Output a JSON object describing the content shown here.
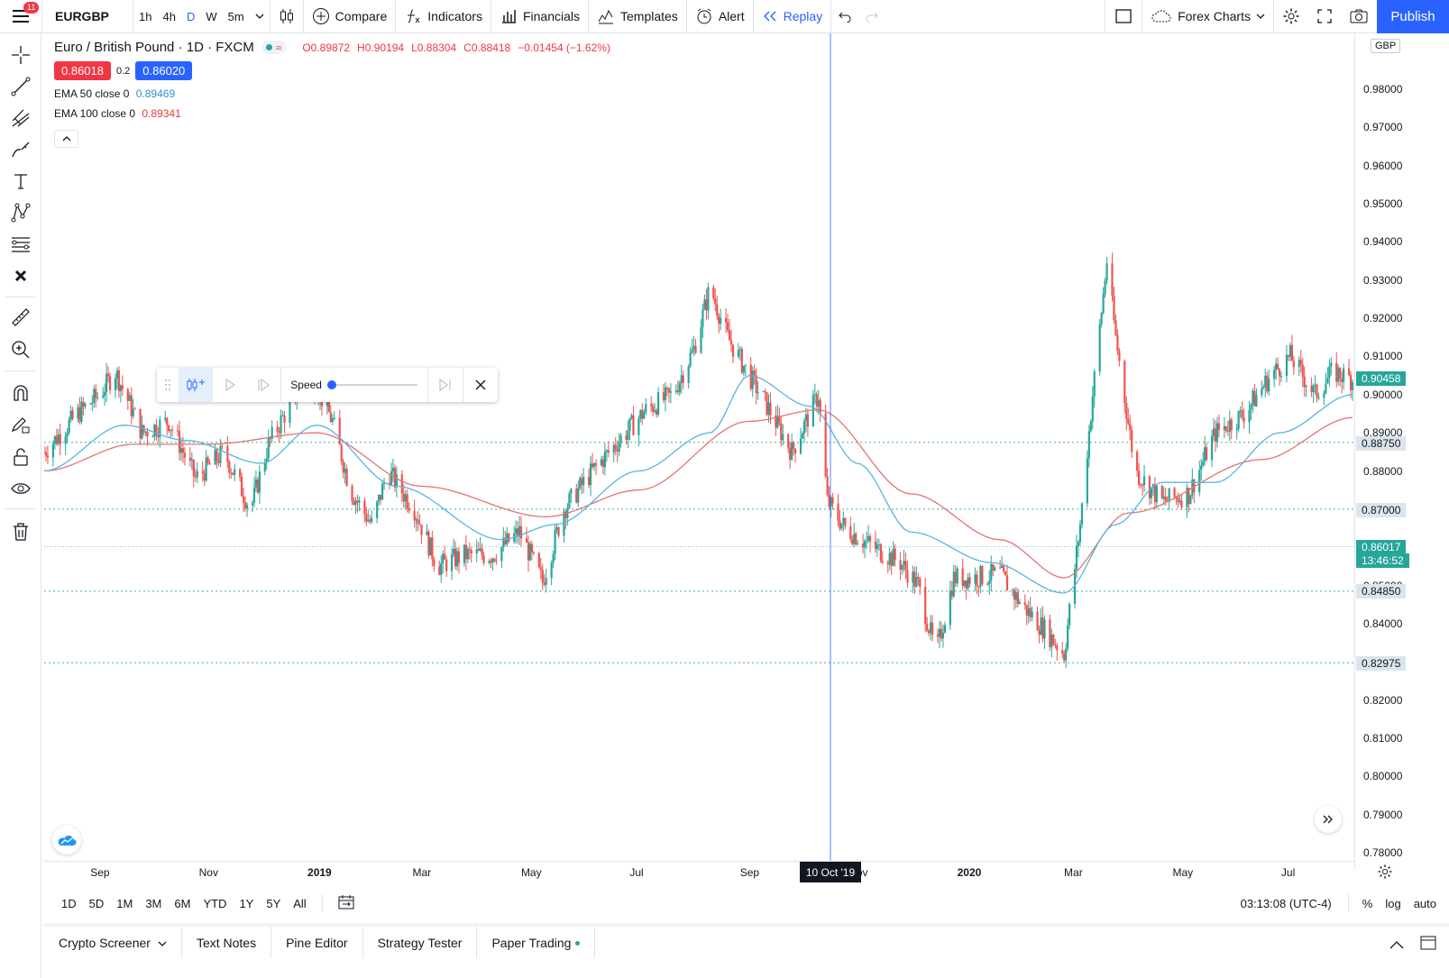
{
  "toolbar": {
    "menu_badge": "11",
    "symbol": "EURGBP",
    "intervals": [
      "1h",
      "4h",
      "D",
      "W",
      "5m"
    ],
    "compare": "Compare",
    "indicators": "Indicators",
    "financials": "Financials",
    "templates": "Templates",
    "alert": "Alert",
    "replay": "Replay",
    "layout_name": "Forex Charts",
    "publish": "Publish"
  },
  "legend": {
    "title": "Euro / British Pound · 1D · FXCM",
    "open": "O0.89872",
    "high": "H0.90194",
    "low": "L0.88304",
    "close": "C0.88418",
    "change": "−0.01454 (−1.62%)",
    "bid": "0.86018",
    "spread": "0.2",
    "ask": "0.86020",
    "ema50_label": "EMA 50 close 0",
    "ema50_value": "0.89469",
    "ema100_label": "EMA 100 close 0",
    "ema100_value": "0.89341"
  },
  "replay_widget": {
    "speed_label": "Speed"
  },
  "price_axis": {
    "currency": "GBP",
    "ticks": [
      "0.98000",
      "0.97000",
      "0.96000",
      "0.95000",
      "0.94000",
      "0.93000",
      "0.92000",
      "0.91000",
      "0.90000",
      "0.89000",
      "0.88000",
      "0.87000",
      "0.86000",
      "0.85000",
      "0.84000",
      "0.83000",
      "0.82000",
      "0.81000",
      "0.80000",
      "0.79000",
      "0.78000"
    ],
    "label_90458": "0.90458",
    "label_88750": "0.88750",
    "label_87000": "0.87000",
    "label_current": "0.86017",
    "label_countdown": "13:46:52",
    "label_84850": "0.84850",
    "label_82975": "0.82975"
  },
  "time_axis": {
    "labels": [
      "Sep",
      "Nov",
      "2019",
      "Mar",
      "May",
      "Jul",
      "Sep",
      "Nov",
      "2020",
      "Mar",
      "May",
      "Jul"
    ],
    "crosshair_label": "10 Oct '19"
  },
  "range_bar": {
    "ranges": [
      "1D",
      "5D",
      "1M",
      "3M",
      "6M",
      "YTD",
      "1Y",
      "5Y",
      "All"
    ],
    "clock": "03:13:08 (UTC-4)",
    "percent": "%",
    "log": "log",
    "auto": "auto"
  },
  "bottom_tabs": [
    "Crypto Screener",
    "Text Notes",
    "Pine Editor",
    "Strategy Tester",
    "Paper Trading"
  ],
  "colors": {
    "up": "#26a69a",
    "down": "#ef5350",
    "ema50": "#5ab4e0",
    "ema100": "#e57373",
    "accent": "#2962ff"
  },
  "chart_data": {
    "type": "candlestick",
    "symbol": "EURGBP",
    "timeframe": "1D",
    "x_range": [
      "2018-08",
      "2020-08"
    ],
    "ylim": [
      0.775,
      0.985
    ],
    "horizontal_levels": [
      0.8875,
      0.87,
      0.86017,
      0.8485,
      0.82975
    ],
    "crosshair_date": "10 Oct '19",
    "close_path": [
      {
        "date": "2018-08-01",
        "price": 0.885
      },
      {
        "date": "2018-08-20",
        "price": 0.895
      },
      {
        "date": "2018-09-01",
        "price": 0.9
      },
      {
        "date": "2018-09-10",
        "price": 0.906
      },
      {
        "date": "2018-09-25",
        "price": 0.89
      },
      {
        "date": "2018-10-10",
        "price": 0.893
      },
      {
        "date": "2018-10-25",
        "price": 0.878
      },
      {
        "date": "2018-11-10",
        "price": 0.885
      },
      {
        "date": "2018-11-25",
        "price": 0.87
      },
      {
        "date": "2018-12-05",
        "price": 0.887
      },
      {
        "date": "2018-12-20",
        "price": 0.9
      },
      {
        "date": "2019-01-01",
        "price": 0.902
      },
      {
        "date": "2019-01-10",
        "price": 0.893
      },
      {
        "date": "2019-01-20",
        "price": 0.875
      },
      {
        "date": "2019-02-01",
        "price": 0.866
      },
      {
        "date": "2019-02-10",
        "price": 0.88
      },
      {
        "date": "2019-02-25",
        "price": 0.87
      },
      {
        "date": "2019-03-10",
        "price": 0.855
      },
      {
        "date": "2019-03-25",
        "price": 0.858
      },
      {
        "date": "2019-04-10",
        "price": 0.858
      },
      {
        "date": "2019-04-25",
        "price": 0.864
      },
      {
        "date": "2019-05-08",
        "price": 0.851
      },
      {
        "date": "2019-05-20",
        "price": 0.87
      },
      {
        "date": "2019-06-05",
        "price": 0.88
      },
      {
        "date": "2019-06-20",
        "price": 0.888
      },
      {
        "date": "2019-07-05",
        "price": 0.896
      },
      {
        "date": "2019-07-20",
        "price": 0.9
      },
      {
        "date": "2019-08-01",
        "price": 0.912
      },
      {
        "date": "2019-08-10",
        "price": 0.928
      },
      {
        "date": "2019-08-20",
        "price": 0.915
      },
      {
        "date": "2019-09-01",
        "price": 0.905
      },
      {
        "date": "2019-09-10",
        "price": 0.898
      },
      {
        "date": "2019-09-25",
        "price": 0.885
      },
      {
        "date": "2019-10-10",
        "price": 0.9
      },
      {
        "date": "2019-10-15",
        "price": 0.872
      },
      {
        "date": "2019-10-25",
        "price": 0.865
      },
      {
        "date": "2019-11-10",
        "price": 0.86
      },
      {
        "date": "2019-11-25",
        "price": 0.856
      },
      {
        "date": "2019-12-05",
        "price": 0.85
      },
      {
        "date": "2019-12-15",
        "price": 0.832
      },
      {
        "date": "2019-12-25",
        "price": 0.852
      },
      {
        "date": "2020-01-05",
        "price": 0.852
      },
      {
        "date": "2020-01-20",
        "price": 0.853
      },
      {
        "date": "2020-02-01",
        "price": 0.845
      },
      {
        "date": "2020-02-15",
        "price": 0.838
      },
      {
        "date": "2020-02-25",
        "price": 0.832
      },
      {
        "date": "2020-03-05",
        "price": 0.866
      },
      {
        "date": "2020-03-12",
        "price": 0.9
      },
      {
        "date": "2020-03-20",
        "price": 0.935
      },
      {
        "date": "2020-03-25",
        "price": 0.915
      },
      {
        "date": "2020-04-05",
        "price": 0.88
      },
      {
        "date": "2020-04-20",
        "price": 0.872
      },
      {
        "date": "2020-05-05",
        "price": 0.874
      },
      {
        "date": "2020-05-20",
        "price": 0.89
      },
      {
        "date": "2020-06-05",
        "price": 0.895
      },
      {
        "date": "2020-06-20",
        "price": 0.905
      },
      {
        "date": "2020-07-01",
        "price": 0.91
      },
      {
        "date": "2020-07-15",
        "price": 0.9
      },
      {
        "date": "2020-07-25",
        "price": 0.906
      },
      {
        "date": "2020-08-05",
        "price": 0.904
      }
    ],
    "ema50_path": [
      {
        "date": "2018-08-01",
        "price": 0.88
      },
      {
        "date": "2018-09-15",
        "price": 0.892
      },
      {
        "date": "2018-10-20",
        "price": 0.888
      },
      {
        "date": "2018-12-01",
        "price": 0.882
      },
      {
        "date": "2019-01-01",
        "price": 0.892
      },
      {
        "date": "2019-02-15",
        "price": 0.876
      },
      {
        "date": "2019-04-15",
        "price": 0.862
      },
      {
        "date": "2019-05-15",
        "price": 0.866
      },
      {
        "date": "2019-07-01",
        "price": 0.88
      },
      {
        "date": "2019-08-10",
        "price": 0.89
      },
      {
        "date": "2019-09-01",
        "price": 0.905
      },
      {
        "date": "2019-10-05",
        "price": 0.897
      },
      {
        "date": "2019-11-01",
        "price": 0.882
      },
      {
        "date": "2019-12-01",
        "price": 0.864
      },
      {
        "date": "2020-01-15",
        "price": 0.856
      },
      {
        "date": "2020-02-25",
        "price": 0.848
      },
      {
        "date": "2020-03-25",
        "price": 0.866
      },
      {
        "date": "2020-04-20",
        "price": 0.877
      },
      {
        "date": "2020-05-20",
        "price": 0.877
      },
      {
        "date": "2020-06-25",
        "price": 0.89
      },
      {
        "date": "2020-08-05",
        "price": 0.9
      }
    ],
    "ema100_path": [
      {
        "date": "2018-08-01",
        "price": 0.88
      },
      {
        "date": "2018-09-20",
        "price": 0.887
      },
      {
        "date": "2018-11-01",
        "price": 0.887
      },
      {
        "date": "2019-01-01",
        "price": 0.89
      },
      {
        "date": "2019-03-01",
        "price": 0.876
      },
      {
        "date": "2019-05-10",
        "price": 0.868
      },
      {
        "date": "2019-07-01",
        "price": 0.875
      },
      {
        "date": "2019-09-01",
        "price": 0.893
      },
      {
        "date": "2019-10-10",
        "price": 0.896
      },
      {
        "date": "2019-12-01",
        "price": 0.874
      },
      {
        "date": "2020-01-20",
        "price": 0.862
      },
      {
        "date": "2020-02-25",
        "price": 0.852
      },
      {
        "date": "2020-04-01",
        "price": 0.869
      },
      {
        "date": "2020-06-15",
        "price": 0.883
      },
      {
        "date": "2020-08-05",
        "price": 0.894
      }
    ]
  }
}
